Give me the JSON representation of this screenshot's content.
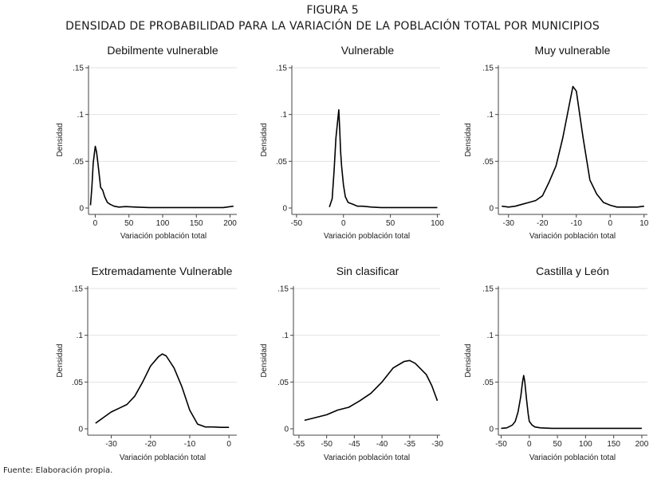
{
  "figure": {
    "label": "FIGURA 5",
    "title": "DENSIDAD DE PROBABILIDAD PARA LA VARIACIÓN DE LA POBLACIÓN TOTAL POR MUNICIPIOS",
    "source": "Fuente: Elaboración propia."
  },
  "chart_data": [
    {
      "type": "line",
      "title": "Debilmente vulnerable",
      "xlabel": "Variación población total",
      "ylabel": "Densidad",
      "ylim": [
        0,
        0.15
      ],
      "xlim": [
        -10,
        210
      ],
      "x_ticks": [
        0,
        50,
        100,
        150,
        200
      ],
      "y_ticks": [
        0,
        0.05,
        0.1,
        0.15
      ],
      "y_tick_labels": [
        "0",
        ".05",
        ".1",
        ".15"
      ],
      "x": [
        -7,
        -5,
        -3,
        -1,
        0,
        2,
        4,
        6,
        8,
        11,
        14,
        18,
        22,
        28,
        35,
        45,
        60,
        80,
        100,
        130,
        160,
        190,
        205
      ],
      "y": [
        0.003,
        0.022,
        0.048,
        0.06,
        0.066,
        0.06,
        0.048,
        0.035,
        0.022,
        0.019,
        0.012,
        0.006,
        0.004,
        0.002,
        0.001,
        0.0015,
        0.001,
        0.0005,
        0.0005,
        0.0005,
        0.0005,
        0.0005,
        0.002
      ]
    },
    {
      "type": "line",
      "title": "Vulnerable",
      "xlabel": "Variación población total",
      "ylabel": "Densidad",
      "ylim": [
        0,
        0.15
      ],
      "xlim": [
        -55,
        103
      ],
      "x_ticks": [
        -50,
        0,
        50,
        100
      ],
      "y_ticks": [
        0,
        0.05,
        0.1,
        0.15
      ],
      "y_tick_labels": [
        "0",
        ".05",
        ".1",
        ".15"
      ],
      "x": [
        -15,
        -12,
        -10,
        -8,
        -6,
        -5,
        -4,
        -3,
        -2,
        0,
        2,
        5,
        10,
        15,
        20,
        30,
        40,
        60,
        80,
        100
      ],
      "y": [
        0.001,
        0.01,
        0.04,
        0.075,
        0.095,
        0.105,
        0.085,
        0.06,
        0.045,
        0.025,
        0.012,
        0.006,
        0.004,
        0.002,
        0.002,
        0.001,
        0.0005,
        0.0005,
        0.0005,
        0.0005
      ]
    },
    {
      "type": "line",
      "title": "Muy vulnerable",
      "xlabel": "Variación población total",
      "ylabel": "Densidad",
      "ylim": [
        0,
        0.15
      ],
      "xlim": [
        -33,
        11
      ],
      "x_ticks": [
        -30,
        -20,
        -10,
        0,
        10
      ],
      "y_ticks": [
        0,
        0.05,
        0.1,
        0.15
      ],
      "y_tick_labels": [
        "0",
        ".05",
        ".1",
        ".15"
      ],
      "x": [
        -32,
        -30,
        -28,
        -26,
        -24,
        -22,
        -20,
        -18,
        -16,
        -14,
        -12,
        -11,
        -10,
        -8,
        -6,
        -4,
        -2,
        0,
        2,
        4,
        6,
        8,
        10
      ],
      "y": [
        0.002,
        0.001,
        0.002,
        0.004,
        0.006,
        0.008,
        0.013,
        0.028,
        0.045,
        0.075,
        0.112,
        0.13,
        0.125,
        0.075,
        0.03,
        0.015,
        0.006,
        0.003,
        0.001,
        0.001,
        0.001,
        0.001,
        0.002
      ]
    },
    {
      "type": "line",
      "title": "Extremadamente Vulnerable",
      "xlabel": "Variación población total",
      "ylabel": "Densidad",
      "ylim": [
        0,
        0.15
      ],
      "xlim": [
        -36,
        2
      ],
      "x_ticks": [
        -30,
        -20,
        -10,
        0
      ],
      "y_ticks": [
        0,
        0.05,
        0.1,
        0.15
      ],
      "y_tick_labels": [
        "0",
        ".05",
        ".1",
        ".15"
      ],
      "x": [
        -34,
        -32,
        -30,
        -28,
        -26,
        -24,
        -22,
        -20,
        -18,
        -17,
        -16,
        -14,
        -12,
        -10,
        -8,
        -6,
        -4,
        -2,
        0
      ],
      "y": [
        0.006,
        0.012,
        0.018,
        0.022,
        0.026,
        0.035,
        0.05,
        0.067,
        0.077,
        0.08,
        0.078,
        0.065,
        0.045,
        0.02,
        0.005,
        0.002,
        0.002,
        0.0015,
        0.0015
      ]
    },
    {
      "type": "line",
      "title": "Sin clasificar",
      "xlabel": "Variación población total",
      "ylabel": "Densidad",
      "ylim": [
        0,
        0.15
      ],
      "xlim": [
        -56,
        -29.5
      ],
      "x_ticks": [
        -55,
        -50,
        -45,
        -40,
        -35,
        -30
      ],
      "y_ticks": [
        0,
        0.05,
        0.1,
        0.15
      ],
      "y_tick_labels": [
        "0",
        ".05",
        ".1",
        ".15"
      ],
      "x": [
        -54,
        -52,
        -50,
        -48,
        -46,
        -44,
        -42,
        -40,
        -38,
        -36,
        -35,
        -34,
        -32,
        -31,
        -30
      ],
      "y": [
        0.009,
        0.012,
        0.015,
        0.02,
        0.023,
        0.03,
        0.038,
        0.05,
        0.065,
        0.072,
        0.073,
        0.07,
        0.058,
        0.046,
        0.03
      ]
    },
    {
      "type": "line",
      "title": "Castilla y León",
      "xlabel": "Variación población total",
      "ylabel": "Densidad",
      "ylim": [
        0,
        0.15
      ],
      "xlim": [
        -55,
        210
      ],
      "x_ticks": [
        -50,
        0,
        50,
        100,
        150,
        200
      ],
      "y_ticks": [
        0,
        0.05,
        0.1,
        0.15
      ],
      "y_tick_labels": [
        "0",
        ".05",
        ".1",
        ".15"
      ],
      "x": [
        -50,
        -40,
        -30,
        -25,
        -20,
        -15,
        -12,
        -10,
        -8,
        -5,
        -2,
        0,
        5,
        10,
        20,
        40,
        70,
        100,
        150,
        200
      ],
      "y": [
        0.0005,
        0.001,
        0.004,
        0.008,
        0.018,
        0.035,
        0.05,
        0.057,
        0.05,
        0.032,
        0.016,
        0.008,
        0.004,
        0.002,
        0.001,
        0.0005,
        0.0005,
        0.0005,
        0.0005,
        0.0005
      ]
    }
  ]
}
